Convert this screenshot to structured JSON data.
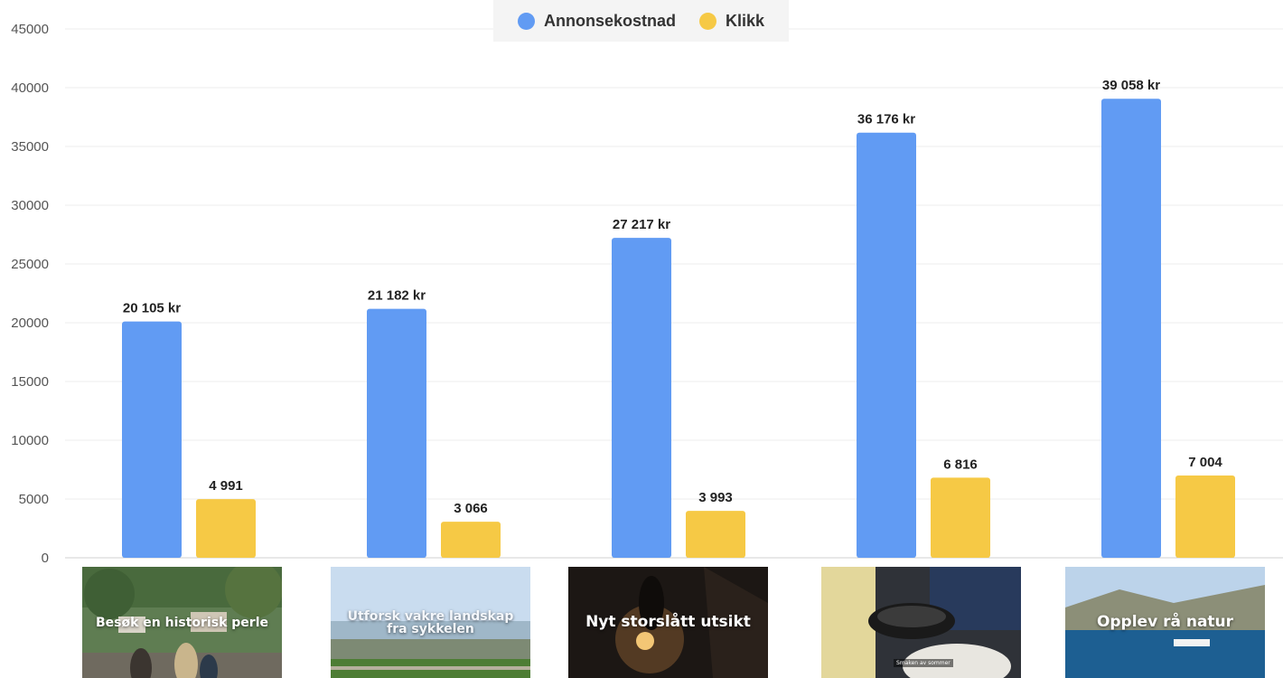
{
  "legend": [
    {
      "name": "Annonsekostnad",
      "color": "#619bf3"
    },
    {
      "name": "Klikk",
      "color": "#f6c945"
    }
  ],
  "chart_data": {
    "type": "bar",
    "ylim": [
      0,
      45000
    ],
    "yticks": [
      0,
      5000,
      10000,
      15000,
      20000,
      25000,
      30000,
      35000,
      40000,
      45000
    ],
    "ytick_labels": [
      "0",
      "5000",
      "10000",
      "15000",
      "20000",
      "25000",
      "30000",
      "35000",
      "40000",
      "45000"
    ],
    "grid": true,
    "legend_position": "top-center",
    "categories": [
      "Besøk en historisk perle",
      "Utforsk vakre landskap fra sykkelen",
      "Nyt storslått utsikt",
      "",
      "Opplev rå natur"
    ],
    "series": [
      {
        "name": "Annonsekostnad",
        "color": "#619bf3",
        "values": [
          20105,
          21182,
          27217,
          36176,
          39058
        ],
        "labels": [
          "20 105 kr",
          "21 182 kr",
          "27 217 kr",
          "36 176 kr",
          "39 058 kr"
        ]
      },
      {
        "name": "Klikk",
        "color": "#f6c945",
        "values": [
          4991,
          3066,
          3993,
          6816,
          7004
        ],
        "labels": [
          "4 991",
          "3 066",
          "3 993",
          "6 816",
          "7 004"
        ]
      }
    ]
  },
  "thumbnails": [
    {
      "caption": "Besøk en historisk perle",
      "icon": "village-photo"
    },
    {
      "caption": "Utforsk vakre landskap fra sykkelen",
      "icon": "landscape-photo"
    },
    {
      "caption": "Nyt storslått utsikt",
      "icon": "cyclist-sunset-photo"
    },
    {
      "caption": "",
      "icon": "seafood-dinner-photo",
      "tag": "Smaken av sommer"
    },
    {
      "caption": "Opplev rå natur",
      "icon": "boat-fjord-photo"
    }
  ]
}
